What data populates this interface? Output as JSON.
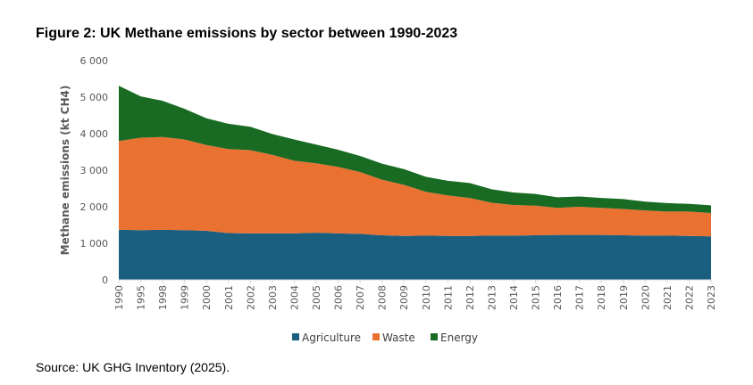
{
  "title": "Figure 2: UK Methane emissions by sector between 1990-2023",
  "source": "Source: UK GHG Inventory (2025).",
  "chart_data": {
    "type": "area",
    "stacked": true,
    "ylabel": "Methane emissions (kt CH4)",
    "xlabel": "",
    "ylim": [
      0,
      6000
    ],
    "yticks": [
      0,
      1000,
      2000,
      3000,
      4000,
      5000,
      6000
    ],
    "ytick_labels": [
      "0",
      "1 000",
      "2 000",
      "3 000",
      "4 000",
      "5 000",
      "6 000"
    ],
    "grid": false,
    "legend_position": "bottom",
    "categories": [
      "1990",
      "1995",
      "1998",
      "1999",
      "2000",
      "2001",
      "2002",
      "2003",
      "2004",
      "2005",
      "2006",
      "2007",
      "2008",
      "2009",
      "2010",
      "2011",
      "2012",
      "2013",
      "2014",
      "2015",
      "2016",
      "2017",
      "2018",
      "2019",
      "2020",
      "2021",
      "2022",
      "2023"
    ],
    "series": [
      {
        "name": "Agriculture",
        "color": "#1a5e80",
        "values": [
          1370,
          1360,
          1370,
          1360,
          1340,
          1280,
          1270,
          1270,
          1270,
          1290,
          1270,
          1260,
          1220,
          1200,
          1210,
          1200,
          1200,
          1210,
          1210,
          1220,
          1230,
          1230,
          1230,
          1220,
          1210,
          1210,
          1200,
          1190
        ]
      },
      {
        "name": "Waste",
        "color": "#e97132",
        "values": [
          2430,
          2530,
          2540,
          2480,
          2350,
          2300,
          2280,
          2150,
          1990,
          1900,
          1820,
          1690,
          1520,
          1400,
          1200,
          1110,
          1040,
          900,
          840,
          810,
          740,
          770,
          740,
          720,
          690,
          660,
          670,
          640
        ]
      },
      {
        "name": "Energy",
        "color": "#196b24",
        "values": [
          1510,
          1130,
          990,
          840,
          730,
          690,
          640,
          570,
          580,
          510,
          470,
          440,
          440,
          430,
          410,
          400,
          410,
          370,
          340,
          320,
          290,
          280,
          270,
          270,
          240,
          230,
          210,
          210
        ]
      }
    ]
  }
}
